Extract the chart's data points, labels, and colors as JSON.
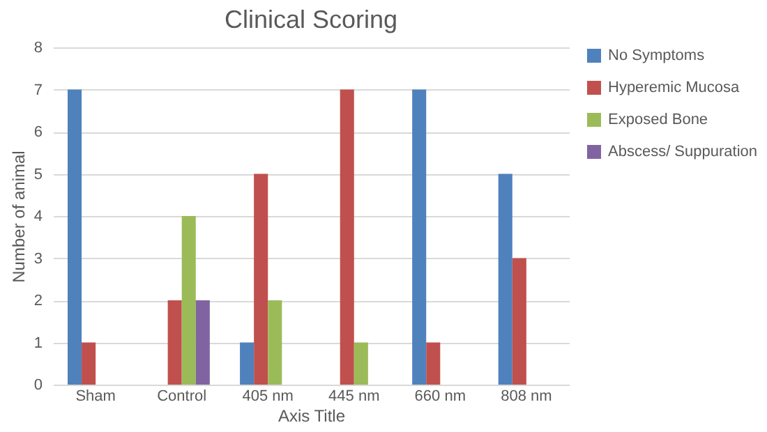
{
  "chart_data": {
    "type": "bar",
    "title": "Clinical Scoring",
    "xlabel": "Axis Title",
    "ylabel": "Number of animal",
    "categories": [
      "Sham",
      "Control",
      "405 nm",
      "445 nm",
      "660 nm",
      "808 nm"
    ],
    "series": [
      {
        "name": "No Symptoms",
        "color": "#4f81bd",
        "values": [
          7,
          0,
          1,
          0,
          7,
          5
        ]
      },
      {
        "name": "Hyperemic Mucosa",
        "color": "#c0504d",
        "values": [
          1,
          2,
          5,
          7,
          1,
          3
        ]
      },
      {
        "name": "Exposed Bone",
        "color": "#9bbb59",
        "values": [
          0,
          4,
          2,
          1,
          0,
          0
        ]
      },
      {
        "name": "Abscess/ Suppuration",
        "color": "#8064a2",
        "values": [
          0,
          2,
          0,
          0,
          0,
          0
        ]
      }
    ],
    "ylim": [
      0,
      8
    ],
    "yticks": [
      0,
      1,
      2,
      3,
      4,
      5,
      6,
      7,
      8
    ],
    "grid": "y",
    "legend": "right"
  }
}
